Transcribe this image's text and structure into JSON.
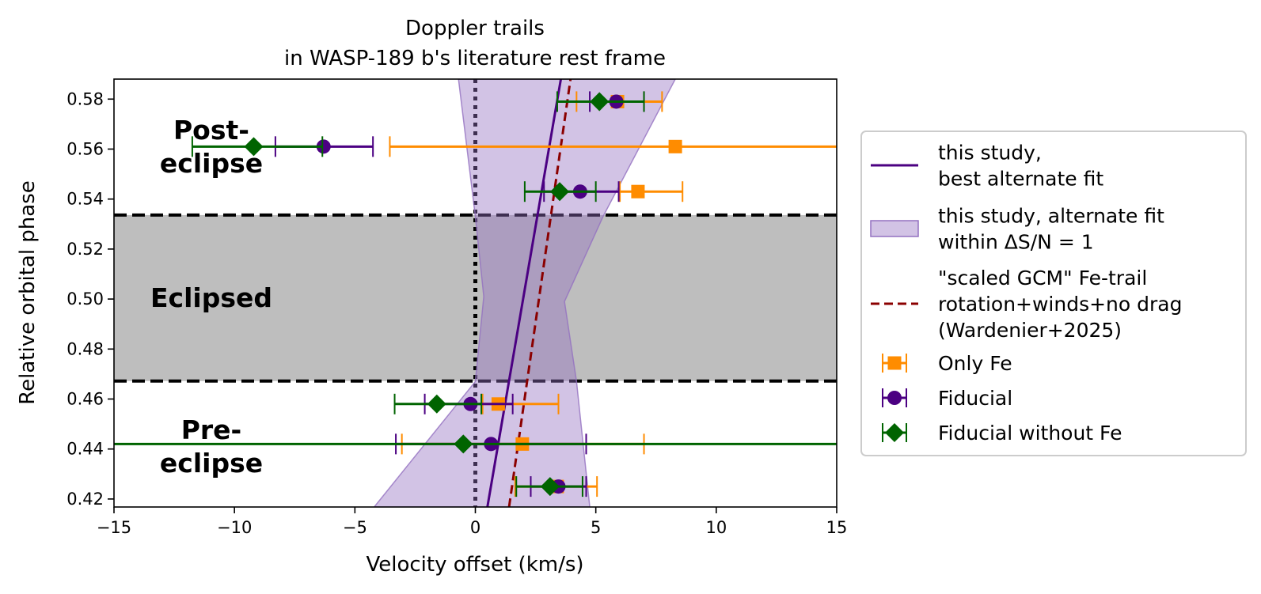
{
  "chart_data": {
    "type": "scatter",
    "title": [
      "Doppler trails",
      "in WASP-189 b's literature rest frame"
    ],
    "xlabel": "Velocity offset (km/s)",
    "ylabel": "Relative orbital phase",
    "xlim": [
      -15,
      15
    ],
    "ylim": [
      0.4168,
      0.588
    ],
    "x_ticks": [
      -15,
      -10,
      -5,
      0,
      5,
      10,
      15
    ],
    "x_tick_labels": [
      "−15",
      "−10",
      "−5",
      "0",
      "5",
      "10",
      "15"
    ],
    "y_ticks": [
      0.42,
      0.44,
      0.46,
      0.48,
      0.5,
      0.52,
      0.54,
      0.56,
      0.58
    ],
    "y_tick_labels": [
      "0.42",
      "0.44",
      "0.46",
      "0.48",
      "0.50",
      "0.52",
      "0.54",
      "0.56",
      "0.58"
    ],
    "grid": false,
    "legend_position": "outside-right",
    "eclipse_region": {
      "label": "Eclipsed",
      "phase_range": [
        0.4672,
        0.5336
      ],
      "color": "#bebebe"
    },
    "region_labels": {
      "pre": [
        "Pre-",
        "eclipse"
      ],
      "post": [
        "Post-",
        "eclipse"
      ]
    },
    "zero_line": {
      "x": 0,
      "style": "dotted",
      "color": "#000000"
    },
    "series": [
      {
        "name": "this study, best alternate fit",
        "legend_lines": [
          "this study,",
          "best alternate fit"
        ],
        "kind": "line",
        "color": "#4b0082",
        "x": [
          0.5,
          3.55
        ],
        "y": [
          0.4168,
          0.588
        ]
      },
      {
        "name": "this study, alternate fit within ΔS/N = 1",
        "legend_lines": [
          "this study, alternate fit",
          "within ΔS/N = 1"
        ],
        "kind": "band",
        "color": "#9370c0",
        "opacity": 0.42,
        "lower": {
          "x": [
            -4.2,
            0.0,
            0.35,
            0.0,
            -0.7
          ],
          "y": [
            0.4168,
            0.467,
            0.501,
            0.533,
            0.588
          ]
        },
        "upper": {
          "x": [
            4.75,
            4.2,
            3.7,
            5.3,
            8.3
          ],
          "y": [
            0.4168,
            0.467,
            0.499,
            0.533,
            0.588
          ]
        }
      },
      {
        "name": "\"scaled GCM\" Fe-trail rotation+winds+no drag (Wardenier+2025)",
        "legend_lines": [
          "\"scaled GCM\" Fe-trail",
          "rotation+winds+no drag",
          "(Wardenier+2025)"
        ],
        "kind": "dashed-line",
        "color": "#8b0000",
        "x": [
          1.4,
          3.95
        ],
        "y": [
          0.4168,
          0.588
        ]
      },
      {
        "name": "Only Fe",
        "legend_lines": [
          "Only Fe"
        ],
        "kind": "errorbar",
        "marker": "square",
        "color": "#ff8c00",
        "points": [
          {
            "y": 0.579,
            "x": 5.9,
            "xerr": [
              1.7,
              1.85
            ]
          },
          {
            "y": 0.561,
            "x": 8.3,
            "xerr": [
              11.85,
              7.5
            ]
          },
          {
            "y": 0.543,
            "x": 6.75,
            "xerr": [
              0.75,
              1.85
            ]
          },
          {
            "y": 0.458,
            "x": 0.95,
            "xerr": [
              0.65,
              2.5
            ]
          },
          {
            "y": 0.442,
            "x": 1.95,
            "xerr": [
              5.0,
              5.05
            ]
          },
          {
            "y": 0.425,
            "x": 3.4,
            "xerr": [
              1.75,
              1.65
            ]
          }
        ]
      },
      {
        "name": "Fiducial",
        "legend_lines": [
          "Fiducial"
        ],
        "kind": "errorbar",
        "marker": "circle",
        "color": "#4b0082",
        "points": [
          {
            "y": 0.579,
            "x": 5.85,
            "xerr": [
              1.1,
              1.15
            ]
          },
          {
            "y": 0.561,
            "x": -6.3,
            "xerr": [
              2.0,
              2.05
            ]
          },
          {
            "y": 0.543,
            "x": 4.35,
            "xerr": [
              1.5,
              1.6
            ]
          },
          {
            "y": 0.458,
            "x": -0.2,
            "xerr": [
              1.9,
              1.75
            ]
          },
          {
            "y": 0.442,
            "x": 0.65,
            "xerr": [
              3.95,
              3.95
            ]
          },
          {
            "y": 0.425,
            "x": 3.45,
            "xerr": [
              1.15,
              1.15
            ]
          }
        ]
      },
      {
        "name": "Fiducial without Fe",
        "legend_lines": [
          "Fiducial without Fe"
        ],
        "kind": "errorbar",
        "marker": "diamond",
        "color": "#006400",
        "points": [
          {
            "y": 0.579,
            "x": 5.15,
            "xerr": [
              1.75,
              1.85
            ]
          },
          {
            "y": 0.561,
            "x": -9.2,
            "xerr": [
              2.55,
              2.85
            ]
          },
          {
            "y": 0.543,
            "x": 3.5,
            "xerr": [
              1.45,
              1.5
            ]
          },
          {
            "y": 0.458,
            "x": -1.6,
            "xerr": [
              1.75,
              1.85
            ]
          },
          {
            "y": 0.442,
            "x": -0.5,
            "xerr": [
              16.0,
              16.0
            ]
          },
          {
            "y": 0.425,
            "x": 3.1,
            "xerr": [
              1.4,
              1.35
            ]
          }
        ]
      }
    ]
  }
}
